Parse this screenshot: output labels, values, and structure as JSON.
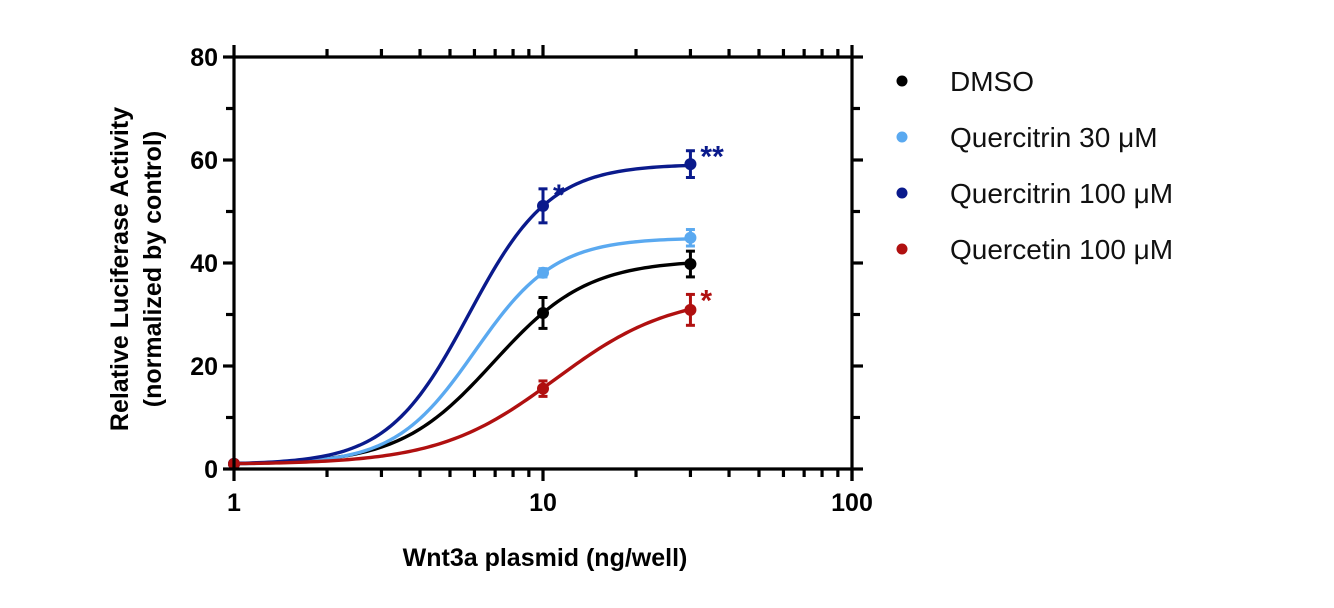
{
  "chart_data": {
    "type": "line",
    "title": "",
    "xlabel": "Wnt3a plasmid (ng/well)",
    "ylabel": "Relative Luciferase  Activity",
    "ylabel_line2": "(normalized by control)",
    "xscale": "log",
    "xlim": [
      1,
      100
    ],
    "ylim": [
      0,
      80
    ],
    "x_ticks": [
      1,
      10,
      100
    ],
    "x_tick_labels": [
      "1",
      "10",
      "100"
    ],
    "y_ticks": [
      0,
      20,
      40,
      60,
      80
    ],
    "y_tick_labels": [
      "0",
      "20",
      "40",
      "60",
      "80"
    ],
    "grid": false,
    "legend_position": "right",
    "x": [
      1,
      10,
      30
    ],
    "series": [
      {
        "name": "DMSO",
        "color": "#000000",
        "values": [
          1,
          30.3,
          39.8
        ],
        "errors": [
          0.3,
          3.0,
          2.5
        ],
        "annotations": [
          "",
          "",
          ""
        ]
      },
      {
        "name": "Quercitrin 30 μM",
        "color": "#5aa9f0",
        "values": [
          1,
          38.1,
          44.9
        ],
        "errors": [
          0.3,
          0.8,
          1.6
        ],
        "annotations": [
          "",
          "",
          ""
        ]
      },
      {
        "name": "Quercitrin 100 μM",
        "color": "#0a1a8c",
        "values": [
          1,
          51.1,
          59.2
        ],
        "errors": [
          0.3,
          3.3,
          2.6
        ],
        "annotations": [
          "",
          "*",
          "**"
        ]
      },
      {
        "name": "Quercetin 100 μM",
        "color": "#b01010",
        "values": [
          1,
          15.6,
          30.9
        ],
        "errors": [
          0.3,
          1.5,
          3.0
        ],
        "annotations": [
          "",
          "",
          "*"
        ]
      }
    ]
  }
}
